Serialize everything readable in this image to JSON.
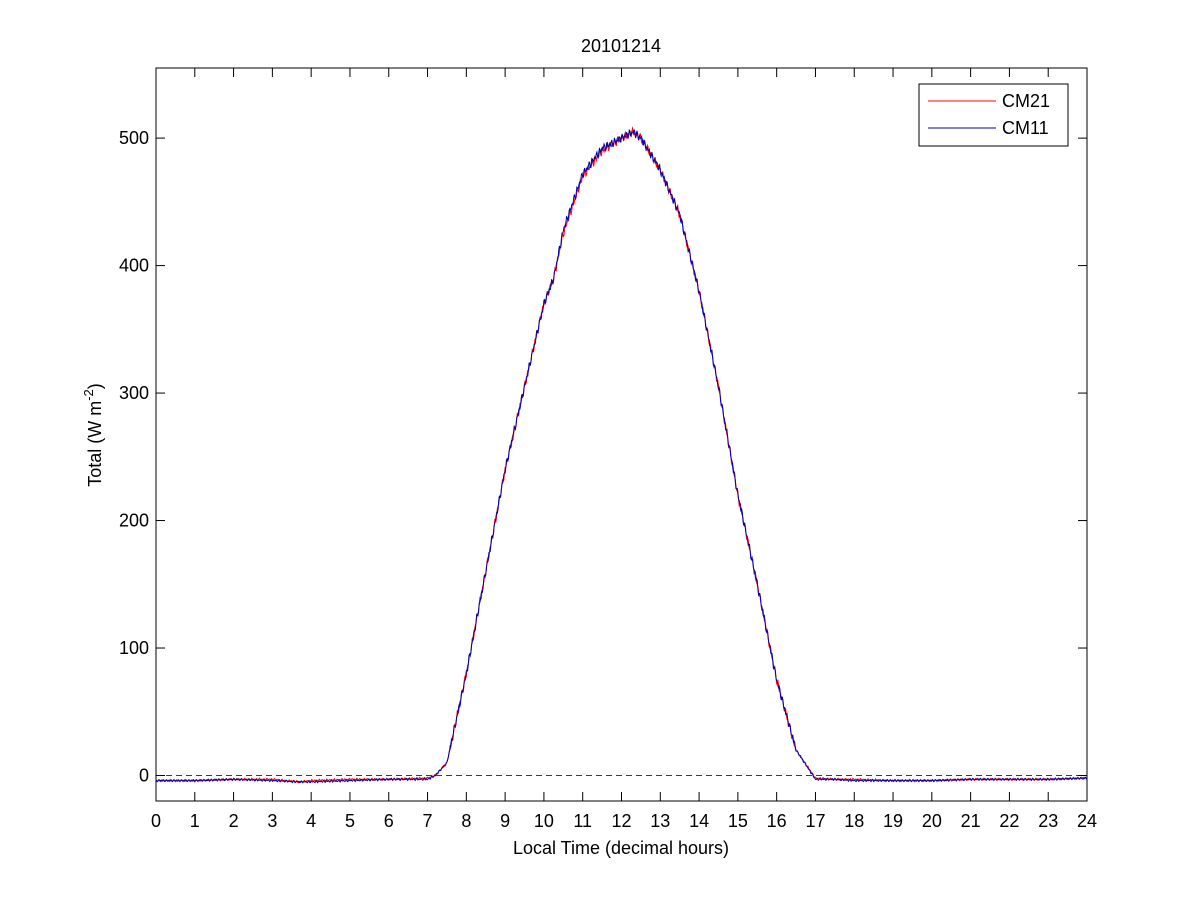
{
  "chart_data": {
    "type": "line",
    "title": "20101214",
    "xlabel": "Local Time (decimal hours)",
    "ylabel": {
      "base": "Total (W m",
      "superscript": "-2",
      "close": ")"
    },
    "xlim": [
      0,
      24
    ],
    "ylim": [
      -20,
      555
    ],
    "xticks": [
      0,
      1,
      2,
      3,
      4,
      5,
      6,
      7,
      8,
      9,
      10,
      11,
      12,
      13,
      14,
      15,
      16,
      17,
      18,
      19,
      20,
      21,
      22,
      23,
      24
    ],
    "xtick_labels": [
      "0",
      "1",
      "2",
      "3",
      "4",
      "5",
      "6",
      "7",
      "8",
      "9",
      "10",
      "11",
      "12",
      "13",
      "14",
      "15",
      "16",
      "17",
      "18",
      "19",
      "20",
      "21",
      "22",
      "23",
      "24"
    ],
    "yticks": [
      0,
      100,
      200,
      300,
      400,
      500
    ],
    "ytick_labels": [
      "0",
      "100",
      "200",
      "300",
      "400",
      "500"
    ],
    "grid": false,
    "legend": {
      "position": "top-right"
    },
    "reference_line": {
      "y": 0,
      "style": "dashed",
      "color": "#cc0000"
    },
    "series": [
      {
        "name": "CM21",
        "color": "#ff0000",
        "x": [
          0,
          1,
          2,
          3,
          3.7,
          4,
          5,
          6,
          7,
          7.2,
          7.5,
          8,
          8.5,
          9,
          9.5,
          10,
          10.25,
          10.5,
          11,
          11.5,
          12,
          12.3,
          12.5,
          13,
          13.5,
          14,
          14.5,
          15,
          15.5,
          16,
          16.5,
          17,
          17.5,
          18,
          19,
          20,
          21,
          22,
          23,
          24
        ],
        "y": [
          -4,
          -4,
          -3,
          -3,
          -5,
          -4,
          -3,
          -3,
          -2,
          0,
          10,
          80,
          160,
          240,
          305,
          370,
          390,
          425,
          470,
          490,
          500,
          505,
          500,
          475,
          440,
          380,
          305,
          220,
          150,
          75,
          20,
          -2,
          -3,
          -3,
          -4,
          -4,
          -3,
          -3,
          -3,
          -2
        ]
      },
      {
        "name": "CM11",
        "color": "#0000aa",
        "x": [
          0,
          1,
          2,
          3,
          3.7,
          4,
          5,
          6,
          7,
          7.2,
          7.5,
          8,
          8.5,
          9,
          9.5,
          10,
          10.25,
          10.5,
          11,
          11.5,
          12,
          12.3,
          12.5,
          13,
          13.5,
          14,
          14.5,
          15,
          15.5,
          16,
          16.5,
          17,
          17.5,
          18,
          19,
          20,
          21,
          22,
          23,
          24
        ],
        "y": [
          -4,
          -4,
          -3,
          -4,
          -5,
          -5,
          -4,
          -3,
          -3,
          0,
          10,
          80,
          160,
          240,
          305,
          370,
          390,
          428,
          472,
          492,
          500,
          505,
          500,
          475,
          440,
          380,
          305,
          220,
          150,
          75,
          20,
          -3,
          -3,
          -4,
          -4,
          -4,
          -3,
          -3,
          -3,
          -2
        ]
      }
    ]
  }
}
